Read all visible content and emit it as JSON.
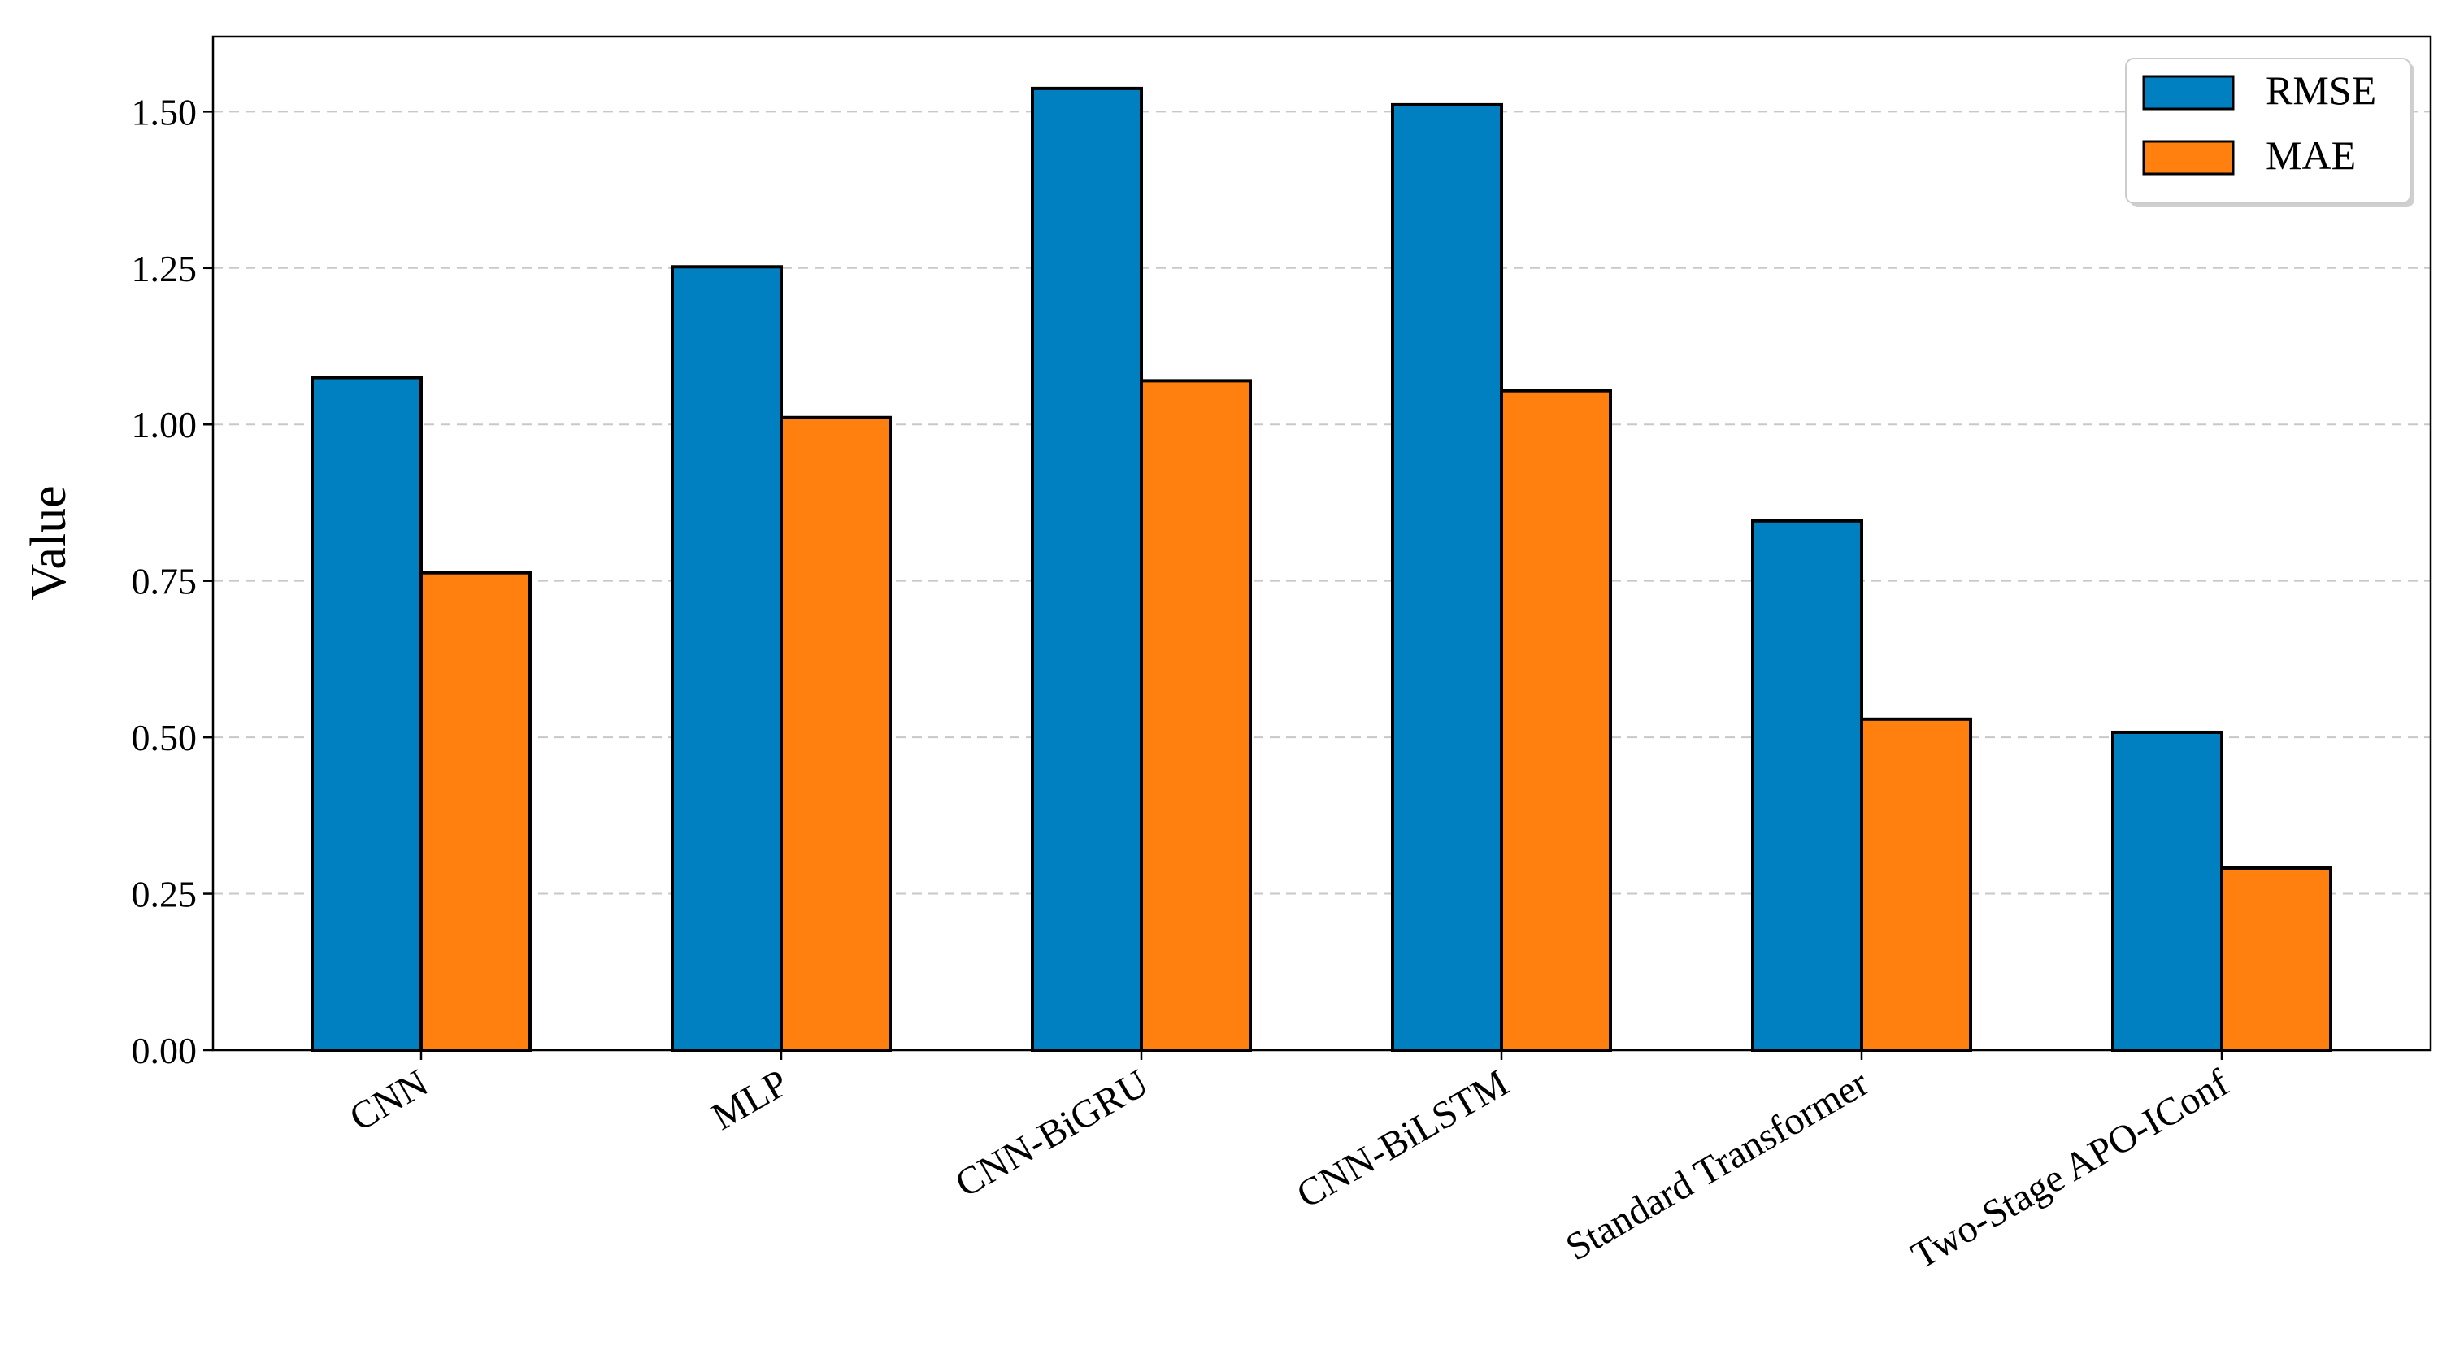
{
  "chart_data": {
    "type": "bar",
    "title": "",
    "xlabel": "",
    "ylabel": "Value",
    "ylim": [
      0,
      1.62
    ],
    "yticks": [
      "0.00",
      "0.25",
      "0.50",
      "0.75",
      "1.00",
      "1.25",
      "1.50"
    ],
    "grid": "horizontal dashed",
    "legend_position": "top-right",
    "categories": [
      "CNN",
      "MLP",
      "CNN-BiGRU",
      "CNN-BiLSTM",
      "Standard Transformer",
      "Two-Stage APO-IConf"
    ],
    "series": [
      {
        "name": "RMSE",
        "color": "#0080C0",
        "values": [
          1.075,
          1.252,
          1.537,
          1.511,
          0.846,
          0.508
        ]
      },
      {
        "name": "MAE",
        "color": "#FF800E",
        "values": [
          0.763,
          1.011,
          1.07,
          1.054,
          0.529,
          0.291
        ]
      }
    ]
  }
}
